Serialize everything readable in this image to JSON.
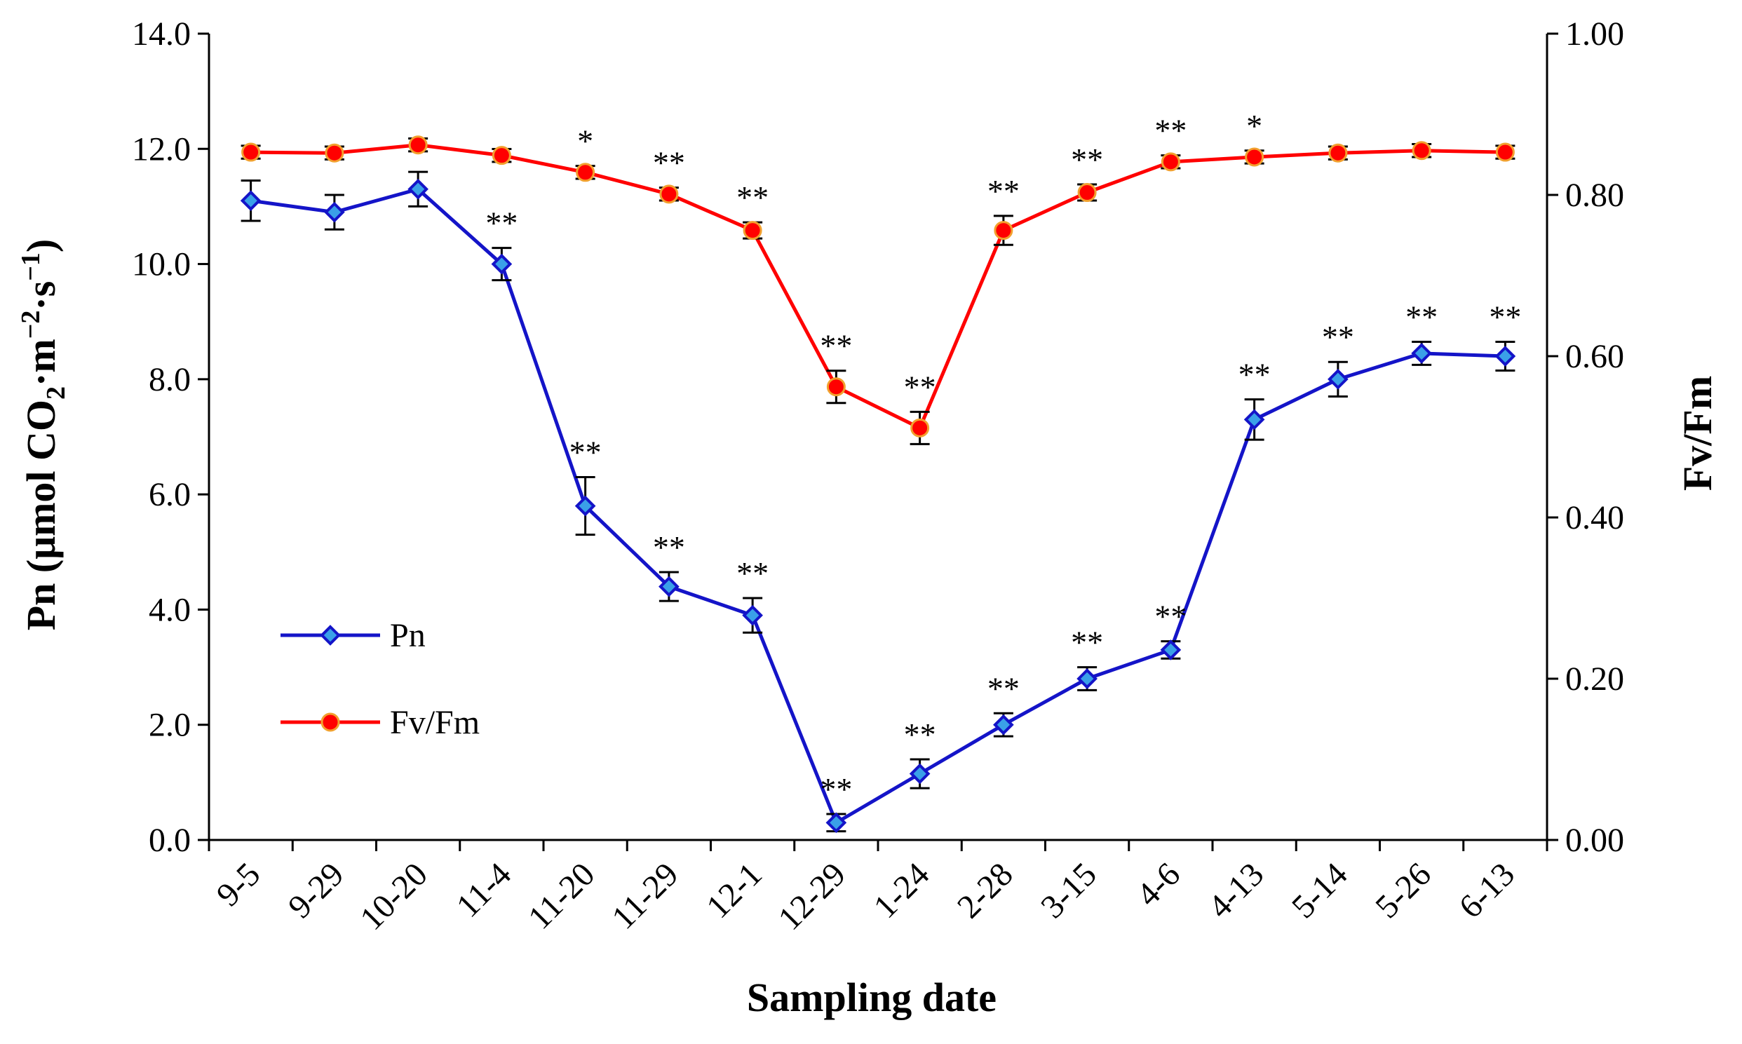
{
  "chart_data": {
    "type": "line",
    "title": "",
    "xlabel": "Sampling date",
    "ylabel_left": {
      "prefix": "Pn (μmol CO",
      "sub": "2",
      "middle": "·m",
      "sup1": "−2",
      "dot": "·s",
      "sup2": "−1",
      "suffix": ")"
    },
    "ylabel_right": "Fv/Fm",
    "categories": [
      "9-5",
      "9-29",
      "10-20",
      "11-4",
      "11-20",
      "11-29",
      "12-1",
      "12-29",
      "1-24",
      "2-28",
      "3-15",
      "4-6",
      "4-13",
      "5-14",
      "5-26",
      "6-13"
    ],
    "ylim_left": [
      0,
      14
    ],
    "ylim_right": [
      0,
      1
    ],
    "left_ticks": [
      "0.0",
      "2.0",
      "4.0",
      "6.0",
      "8.0",
      "10.0",
      "12.0",
      "14.0"
    ],
    "right_ticks": [
      "0.00",
      "0.20",
      "0.40",
      "0.60",
      "0.80",
      "1.00"
    ],
    "grid": false,
    "legend_position": "left-middle",
    "series": [
      {
        "name": "Pn",
        "axis": "left",
        "color": "#1414c8",
        "marker": "diamond",
        "marker_color": "#3aa0e8",
        "values": [
          11.1,
          10.9,
          11.3,
          10.0,
          5.8,
          4.4,
          3.9,
          0.3,
          1.15,
          2.0,
          2.8,
          3.3,
          7.3,
          8.0,
          8.45,
          8.4
        ],
        "errors": [
          0.35,
          0.3,
          0.3,
          0.28,
          0.5,
          0.25,
          0.3,
          0.15,
          0.25,
          0.2,
          0.2,
          0.15,
          0.35,
          0.3,
          0.2,
          0.25
        ],
        "significance": [
          "",
          "",
          "",
          "**",
          "**",
          "**",
          "**",
          "**",
          "**",
          "**",
          "**",
          "**",
          "**",
          "**",
          "**",
          "**"
        ]
      },
      {
        "name": "Fv/Fm",
        "axis": "right",
        "color": "#ff0000",
        "marker": "circle",
        "marker_color": "#ff0000",
        "values": [
          0.853,
          0.852,
          0.862,
          0.849,
          0.828,
          0.801,
          0.756,
          0.562,
          0.511,
          0.756,
          0.803,
          0.841,
          0.847,
          0.852,
          0.855,
          0.853
        ],
        "errors": [
          0.008,
          0.008,
          0.008,
          0.008,
          0.008,
          0.008,
          0.01,
          0.02,
          0.02,
          0.018,
          0.01,
          0.008,
          0.008,
          0.008,
          0.008,
          0.008
        ],
        "significance": [
          "",
          "",
          "",
          "",
          "*",
          "**",
          "**",
          "**",
          "**",
          "**",
          "**",
          "**",
          "*",
          "",
          "",
          ""
        ]
      }
    ]
  }
}
